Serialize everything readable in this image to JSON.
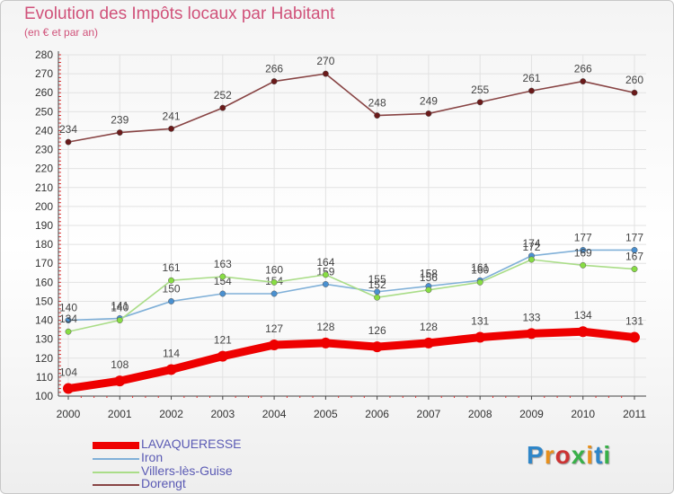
{
  "title": "Evolution des Impôts locaux par Habitant",
  "subtitle": "(en € et par an)",
  "logo": {
    "text": "Proxiti",
    "colors": [
      "#2f86c8",
      "#e8901c",
      "#cc3333",
      "#38b048",
      "#e8901c",
      "#2f86c8",
      "#38b048"
    ]
  },
  "chart_data": {
    "type": "line",
    "x": [
      "2000",
      "2001",
      "2002",
      "2003",
      "2004",
      "2005",
      "2006",
      "2007",
      "2008",
      "2009",
      "2010",
      "2011"
    ],
    "ylim": [
      100,
      280
    ],
    "yticks": [
      100,
      110,
      120,
      130,
      140,
      150,
      160,
      170,
      180,
      190,
      200,
      210,
      220,
      230,
      240,
      250,
      260,
      270,
      280
    ],
    "grid": true,
    "legend_position": "bottom-left",
    "series": [
      {
        "name": "LAVAQUERESSE",
        "values": [
          104,
          108,
          114,
          121,
          127,
          128,
          126,
          128,
          131,
          133,
          134,
          131
        ],
        "color": "#ee0000",
        "line_color": "#ee0000",
        "emphasis": true
      },
      {
        "name": "Iron",
        "values": [
          140,
          141,
          150,
          154,
          154,
          159,
          155,
          158,
          161,
          174,
          177,
          177
        ],
        "color": "#4a90d0",
        "line_color": "#80b0d8",
        "emphasis": false
      },
      {
        "name": "Villers-lès-Guise",
        "values": [
          134,
          140,
          161,
          163,
          160,
          164,
          152,
          156,
          160,
          172,
          169,
          167
        ],
        "color": "#88dd44",
        "line_color": "#aadd88",
        "emphasis": false
      },
      {
        "name": "Dorengt",
        "values": [
          234,
          239,
          241,
          252,
          266,
          270,
          248,
          249,
          255,
          261,
          266,
          260
        ],
        "color": "#6a1a1a",
        "line_color": "#884444",
        "emphasis": false
      }
    ]
  }
}
